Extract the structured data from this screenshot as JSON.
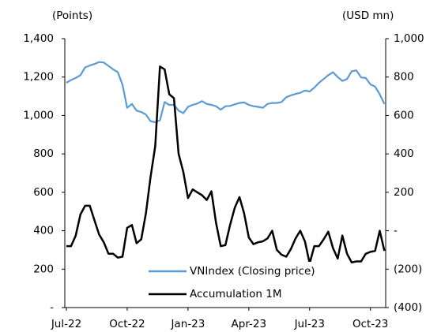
{
  "chart_data": {
    "type": "line",
    "y_label": "(Points)",
    "y2_label": "(USD mn)",
    "categories": [
      "Jul-22",
      null,
      null,
      null,
      null,
      null,
      null,
      null,
      null,
      null,
      null,
      null,
      null,
      "Oct-22",
      null,
      null,
      null,
      null,
      null,
      null,
      null,
      null,
      null,
      null,
      null,
      null,
      "Jan-23",
      null,
      null,
      null,
      null,
      null,
      null,
      null,
      null,
      null,
      null,
      null,
      null,
      "Apr-23",
      null,
      null,
      null,
      null,
      null,
      null,
      null,
      null,
      null,
      null,
      null,
      null,
      "Jul-23",
      null,
      null,
      null,
      null,
      null,
      null,
      null,
      null,
      null,
      null,
      null,
      null,
      "Oct-23",
      null,
      null,
      null
    ],
    "series": [
      {
        "name": "VNIndex (Closing price)",
        "color": "#5b9bd5",
        "axis": "y",
        "values": [
          1170,
          1185,
          1195,
          1210,
          1250,
          1260,
          1268,
          1278,
          1276,
          1258,
          1240,
          1225,
          1160,
          1040,
          1060,
          1025,
          1018,
          1005,
          970,
          965,
          975,
          1070,
          1055,
          1055,
          1025,
          1012,
          1045,
          1055,
          1062,
          1075,
          1060,
          1055,
          1048,
          1030,
          1048,
          1050,
          1058,
          1065,
          1068,
          1055,
          1048,
          1045,
          1040,
          1060,
          1065,
          1065,
          1070,
          1095,
          1105,
          1112,
          1118,
          1130,
          1125,
          1145,
          1170,
          1190,
          1210,
          1225,
          1200,
          1180,
          1190,
          1230,
          1235,
          1198,
          1195,
          1162,
          1150,
          1110,
          1060
        ]
      },
      {
        "name": "Accumulation 1M",
        "color": "#000000",
        "axis": "y2",
        "values": [
          -80,
          -80,
          -25,
          85,
          130,
          130,
          55,
          -20,
          -60,
          -120,
          -120,
          -140,
          -135,
          15,
          30,
          -65,
          -45,
          90,
          280,
          440,
          855,
          840,
          710,
          690,
          400,
          305,
          170,
          215,
          200,
          185,
          160,
          205,
          40,
          -80,
          -75,
          30,
          120,
          175,
          90,
          -35,
          -70,
          -60,
          -55,
          -40,
          0,
          -100,
          -125,
          -135,
          -95,
          -40,
          0,
          -55,
          -170,
          -80,
          -80,
          -45,
          -5,
          -90,
          -145,
          -25,
          -120,
          -165,
          -160,
          -160,
          -120,
          -110,
          -105,
          0,
          -105
        ]
      }
    ],
    "ylim": [
      0,
      1400
    ],
    "yticks": [
      {
        "value": 0,
        "label": "-"
      },
      200,
      400,
      600,
      800,
      {
        "value": 1000,
        "label": "1,000"
      },
      {
        "value": 1200,
        "label": "1,200"
      },
      {
        "value": 1400,
        "label": "1,400"
      }
    ],
    "y2lim": [
      -400,
      1000
    ],
    "y2ticks": [
      {
        "value": -400,
        "label": "(400)"
      },
      {
        "value": -200,
        "label": "(200)"
      },
      {
        "value": 0,
        "label": "-"
      },
      200,
      400,
      600,
      800,
      {
        "value": 1000,
        "label": "1,000"
      }
    ],
    "grid": false
  }
}
